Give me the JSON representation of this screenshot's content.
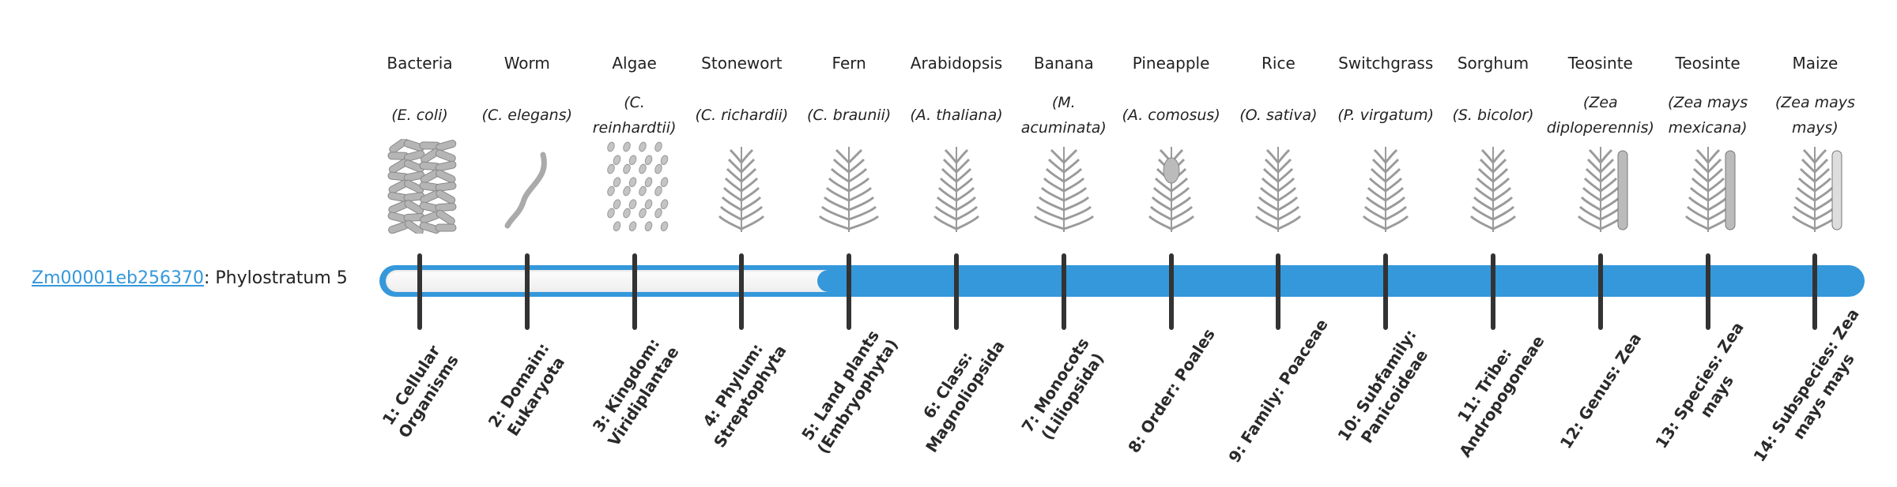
{
  "gene": {
    "id": "Zm00001eb256370",
    "suffix": ": Phylostratum 5",
    "phylostratum": 5
  },
  "colors": {
    "accent": "#3498db",
    "tick": "#333333"
  },
  "organisms": [
    {
      "common": "Bacteria",
      "sci": "(E. coli)",
      "icon": "bacteria-icon",
      "stratum": "1: Cellular Organisms"
    },
    {
      "common": "Worm",
      "sci": "(C. elegans)",
      "icon": "worm-icon",
      "stratum": "2: Domain: Eukaryota"
    },
    {
      "common": "Algae",
      "sci": "(C. reinhardtii)",
      "icon": "algae-icon",
      "stratum": "3: Kingdom: Viridiplantae"
    },
    {
      "common": "Stonewort",
      "sci": "(C. richardii)",
      "icon": "stonewort-icon",
      "stratum": "4: Phylum: Streptophyta"
    },
    {
      "common": "Fern",
      "sci": "(C. braunii)",
      "icon": "fern-icon",
      "stratum": "5: Land plants (Embryophyta)"
    },
    {
      "common": "Arabidopsis",
      "sci": "(A. thaliana)",
      "icon": "arabidopsis-icon",
      "stratum": "6: Class: Magnoliopsida"
    },
    {
      "common": "Banana",
      "sci": "(M. acuminata)",
      "icon": "banana-icon",
      "stratum": "7: Monocots (Liliopsida)"
    },
    {
      "common": "Pineapple",
      "sci": "(A. comosus)",
      "icon": "pineapple-icon",
      "stratum": "8: Order: Poales"
    },
    {
      "common": "Rice",
      "sci": "(O. sativa)",
      "icon": "rice-icon",
      "stratum": "9: Family: Poaceae"
    },
    {
      "common": "Switchgrass",
      "sci": "(P. virgatum)",
      "icon": "switchgrass-icon",
      "stratum": "10: Subfamily: Panicoideae"
    },
    {
      "common": "Sorghum",
      "sci": "(S. bicolor)",
      "icon": "sorghum-icon",
      "stratum": "11: Tribe: Andropogoneae"
    },
    {
      "common": "Teosinte",
      "sci": "(Zea diploperennis)",
      "icon": "teosinte-icon",
      "stratum": "12: Genus: Zea"
    },
    {
      "common": "Teosinte",
      "sci": "(Zea mays mexicana)",
      "icon": "teosinte-icon",
      "stratum": "13: Species: Zea mays"
    },
    {
      "common": "Maize",
      "sci": "(Zea mays mays)",
      "icon": "maize-icon",
      "stratum": "14: Subspecies: Zea mays mays"
    }
  ]
}
